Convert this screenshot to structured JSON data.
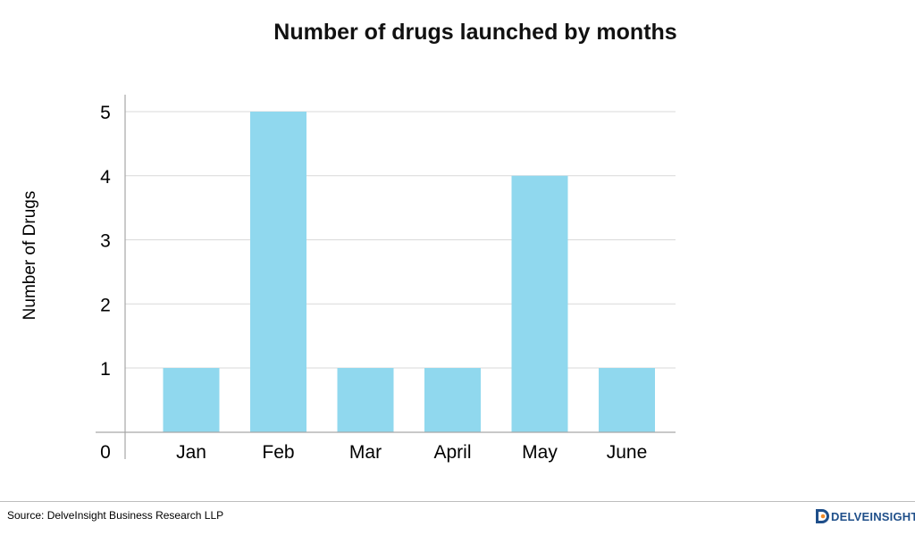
{
  "chart_data": {
    "type": "bar",
    "title": "Number of drugs launched by months",
    "xlabel": "",
    "ylabel": "Number of Drugs",
    "categories": [
      "Jan",
      "Feb",
      "Mar",
      "April",
      "May",
      "June"
    ],
    "values": [
      1,
      5,
      1,
      1,
      4,
      1
    ],
    "ylim": [
      0,
      5
    ],
    "y_ticks": [
      "0",
      "1",
      "2",
      "3",
      "4",
      "5"
    ],
    "grid": true,
    "bar_color": "#90d8ee"
  },
  "footer": {
    "source": "Source: DelveInsight Business Research LLP",
    "logo_text": "DELVEINSIGHT",
    "logo_color": "#1f4f8a"
  }
}
